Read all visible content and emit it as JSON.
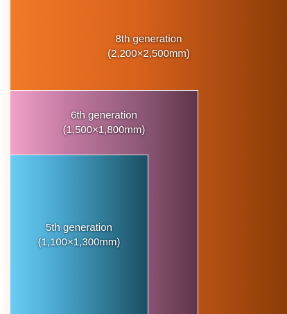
{
  "diagram": {
    "generations": [
      {
        "name": "8th generation",
        "size": "(2,200×2,500mm)",
        "color": "#d9621c"
      },
      {
        "name": "6th generation",
        "size": "(1,500×1,800mm)",
        "color": "#a8678c"
      },
      {
        "name": "5th generation",
        "size": "(1,100×1,300mm)",
        "color": "#3d8fb1"
      }
    ]
  }
}
